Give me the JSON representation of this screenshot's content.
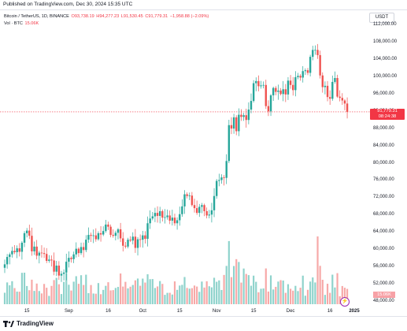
{
  "published": "Published on TradingView.com, Dec 30, 2024 15:35 UTC",
  "legend": {
    "symbol": "Bitcoin / TetherUS, 1D, BINANCE",
    "open": "O93,738.19",
    "high": "H94,277.23",
    "low": "L91,530.45",
    "close": "C91,779.31",
    "change": "−1,958.88 (−2.09%)",
    "volume_label": "Vol · BTC",
    "volume_value": "15.06K"
  },
  "currency": "USDT",
  "price_badge": {
    "price": "91,779.31",
    "countdown": "08:24:38"
  },
  "volume_badge": "15.06K",
  "brand": "TradingView",
  "colors": {
    "up": "#26a69a",
    "down": "#ef5350",
    "vol_up": "#8fd3cc",
    "vol_down": "#f7a9a8",
    "last": "#f23645"
  },
  "chart_data": {
    "type": "candlestick",
    "y_ticks": [
      "112,000.00",
      "108,000.00",
      "104,000.00",
      "100,000.00",
      "96,000.00",
      "92,000.00",
      "88,000.00",
      "84,000.00",
      "80,000.00",
      "76,000.00",
      "72,000.00",
      "68,000.00",
      "64,000.00",
      "60,000.00",
      "56,000.00",
      "52,000.00",
      "48,000.00"
    ],
    "x_ticks": [
      {
        "label": "15",
        "bold": false
      },
      {
        "label": "Sep",
        "bold": false
      },
      {
        "label": "16",
        "bold": false
      },
      {
        "label": "Oct",
        "bold": false
      },
      {
        "label": "15",
        "bold": false
      },
      {
        "label": "Nov",
        "bold": false
      },
      {
        "label": "15",
        "bold": false
      },
      {
        "label": "Dec",
        "bold": false
      },
      {
        "label": "16",
        "bold": false
      },
      {
        "label": "2025",
        "bold": true
      }
    ],
    "ylim": [
      48000,
      112000
    ],
    "last_price": 91779.31,
    "closes": [
      56500,
      58200,
      58800,
      59600,
      59300,
      60200,
      59400,
      61500,
      63700,
      64300,
      63100,
      59500,
      60600,
      58500,
      59200,
      59100,
      58900,
      57300,
      57600,
      57400,
      54800,
      56200,
      53900,
      54300,
      54600,
      57100,
      58000,
      57700,
      58800,
      60100,
      59100,
      60500,
      59800,
      62200,
      63300,
      63100,
      63200,
      62300,
      63700,
      63400,
      64200,
      65700,
      65200,
      63300,
      63100,
      63800,
      64600,
      62500,
      60800,
      60600,
      62200,
      62000,
      62900,
      60300,
      62300,
      62200,
      63200,
      62400,
      66000,
      67100,
      67600,
      68400,
      67700,
      68800,
      67300,
      67400,
      67800,
      66600,
      67300,
      66000,
      66700,
      68100,
      69900,
      72700,
      72300,
      72400,
      70200,
      69500,
      68400,
      69800,
      70200,
      68800,
      67800,
      68000,
      69000,
      72300,
      75800,
      76000,
      76600,
      76500,
      80400,
      88700,
      87900,
      90500,
      87300,
      91100,
      90600,
      91000,
      89900,
      92300,
      94300,
      98400,
      98900,
      97700,
      97900,
      98000,
      93100,
      91900,
      95600,
      97300,
      96400,
      96700,
      95900,
      97000,
      95800,
      99000,
      98000,
      96800,
      99800,
      100100,
      99700,
      101200,
      101400,
      100800,
      104500,
      106100,
      106100,
      104900,
      100200,
      97500,
      97800,
      95200,
      94800,
      98700,
      99600,
      95300,
      95000,
      94400,
      93700,
      91780
    ]
  }
}
